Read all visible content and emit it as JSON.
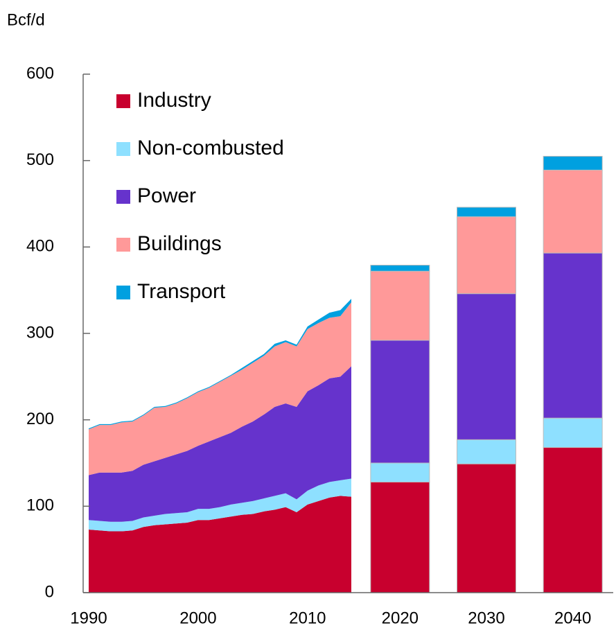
{
  "chart_data": [
    {
      "type": "stacked-area",
      "y_label": "Bcf/d",
      "x": [
        1990,
        1991,
        1992,
        1993,
        1994,
        1995,
        1996,
        1997,
        1998,
        1999,
        2000,
        2001,
        2002,
        2003,
        2004,
        2005,
        2006,
        2007,
        2008,
        2009,
        2010,
        2011,
        2012,
        2013,
        2014
      ],
      "xlim": [
        1990,
        2014
      ],
      "xticks": [
        1990,
        2000,
        2010
      ],
      "ylim": [
        0,
        600
      ],
      "yticks": [
        0,
        100,
        200,
        300,
        400,
        500,
        600
      ],
      "legend": "top-left",
      "series": [
        {
          "name": "Industry",
          "color": "#c8002e",
          "values": [
            73,
            72,
            71,
            71,
            72,
            76,
            78,
            79,
            80,
            81,
            84,
            84,
            86,
            88,
            90,
            91,
            94,
            96,
            99,
            93,
            102,
            106,
            110,
            112,
            111
          ]
        },
        {
          "name": "Non-combusted",
          "color": "#8ee0ff",
          "values": [
            11,
            11,
            11,
            11,
            11,
            11,
            11,
            12,
            12,
            12,
            13,
            13,
            13,
            14,
            14,
            15,
            15,
            16,
            16,
            15,
            16,
            18,
            18,
            18,
            21
          ]
        },
        {
          "name": "Power",
          "color": "#6633cc",
          "values": [
            52,
            56,
            57,
            57,
            58,
            61,
            63,
            65,
            68,
            71,
            73,
            78,
            81,
            83,
            88,
            92,
            97,
            103,
            104,
            107,
            115,
            116,
            120,
            120,
            130
          ]
        },
        {
          "name": "Buildings",
          "color": "#ff9999",
          "values": [
            53,
            55,
            55,
            58,
            57,
            57,
            62,
            59,
            59,
            61,
            62,
            62,
            64,
            66,
            66,
            68,
            68,
            70,
            71,
            70,
            72,
            72,
            70,
            70,
            74
          ]
        },
        {
          "name": "Transport",
          "color": "#00a0e0",
          "values": [
            1,
            1,
            1,
            1,
            1,
            1,
            1,
            1,
            1,
            1,
            1,
            1,
            1,
            1,
            2,
            2,
            2,
            3,
            2,
            2,
            3,
            4,
            6,
            7,
            4
          ]
        }
      ]
    },
    {
      "type": "stacked-bar",
      "categories": [
        "2020",
        "2030",
        "2040"
      ],
      "series": [
        {
          "values": [
            128,
            149,
            168
          ]
        },
        {
          "values": [
            22,
            28,
            34
          ]
        },
        {
          "values": [
            142,
            169,
            191
          ]
        },
        {
          "values": [
            80,
            89,
            96
          ]
        },
        {
          "values": [
            7,
            11,
            16
          ]
        }
      ]
    }
  ]
}
